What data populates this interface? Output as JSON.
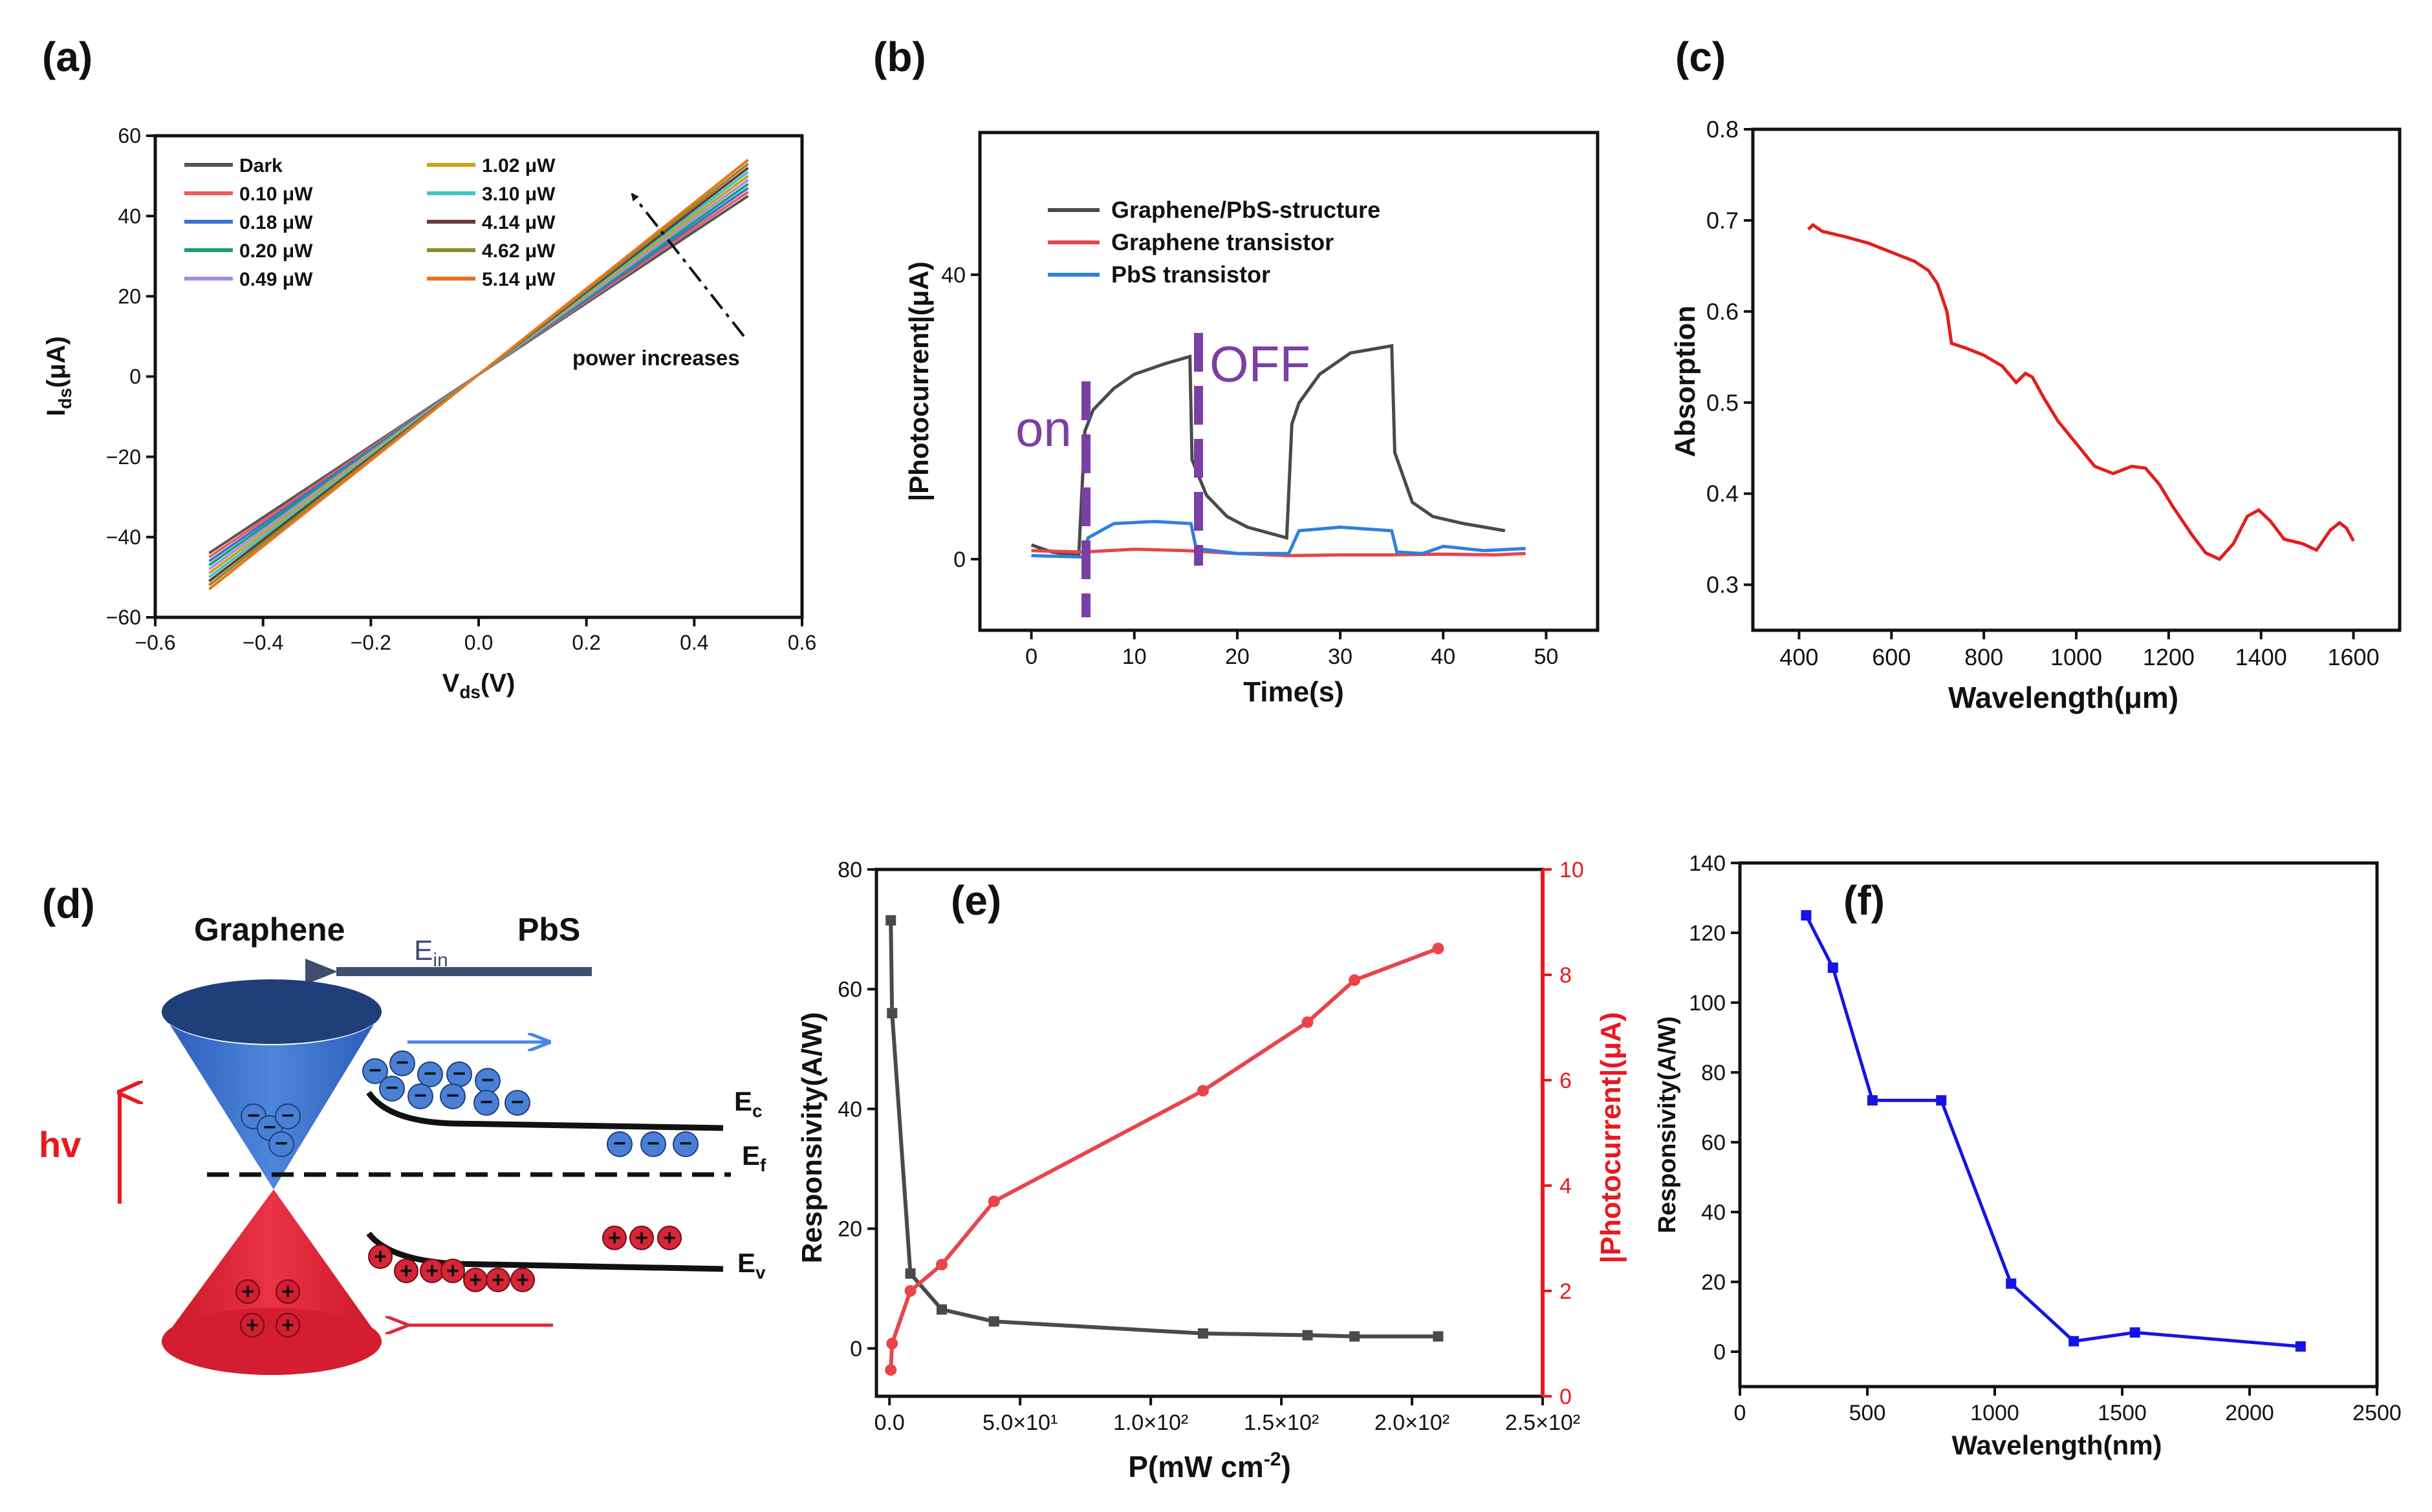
{
  "colors": {
    "dark": "#4a4a4a",
    "red": "#e8454a",
    "blue": "#2f7fe0",
    "purple": "#7b3fa6",
    "blue_line": "#1414e6",
    "red_line": "#e03b3b",
    "absorb": "#e0201b",
    "graphene_blue": "#3f6fc4",
    "pbs_red": "#e02a3a",
    "arrow_grey": "#3f4d6e"
  },
  "panels": {
    "a": {
      "label": "(a)"
    },
    "b": {
      "label": "(b)"
    },
    "c": {
      "label": "(c)"
    },
    "d": {
      "label": "(d)"
    },
    "e": {
      "label": "(e)"
    },
    "f": {
      "label": "(f)"
    }
  },
  "chart_data": [
    {
      "id": "a",
      "type": "line",
      "xlabel": "V",
      "xlabel_sub": "ds",
      "xlabel_tail": "(V)",
      "ylabel": "I",
      "ylabel_sub": "ds",
      "ylabel_tail": "(μA)",
      "xlim": [
        -0.6,
        0.6
      ],
      "ylim": [
        -60,
        60
      ],
      "xticks": [
        -0.6,
        -0.4,
        -0.2,
        0.0,
        0.2,
        0.4,
        0.6
      ],
      "xtick_labels": [
        "−0.6",
        "−0.4",
        "−0.2",
        "0.0",
        "0.2",
        "0.4",
        "0.6"
      ],
      "yticks": [
        -60,
        -40,
        -20,
        0,
        20,
        40,
        60
      ],
      "ytick_labels": [
        "−60",
        "−40",
        "−20",
        "0",
        "20",
        "40",
        "60"
      ],
      "x_range": [
        -0.5,
        0.5
      ],
      "series": [
        {
          "name": "Dark",
          "color": "#555555",
          "ymin": -44,
          "ymax": 45
        },
        {
          "name": "0.10 μW",
          "color": "#ee5a5a",
          "ymin": -45,
          "ymax": 46
        },
        {
          "name": "0.18 μW",
          "color": "#3a73d6",
          "ymin": -46,
          "ymax": 47
        },
        {
          "name": "0.20 μW",
          "color": "#1f9c74",
          "ymin": -47,
          "ymax": 48
        },
        {
          "name": "0.49 μW",
          "color": "#a98ee0",
          "ymin": -48,
          "ymax": 49
        },
        {
          "name": "1.02 μW",
          "color": "#c9a21f",
          "ymin": -49,
          "ymax": 50
        },
        {
          "name": "3.10 μW",
          "color": "#3ec6c6",
          "ymin": -50,
          "ymax": 51
        },
        {
          "name": "4.14 μW",
          "color": "#6b3a3a",
          "ymin": -51,
          "ymax": 52
        },
        {
          "name": "4.62 μW",
          "color": "#8b8b2a",
          "ymin": -52,
          "ymax": 53
        },
        {
          "name": "5.14 μW",
          "color": "#e8741f",
          "ymin": -53,
          "ymax": 54
        }
      ],
      "annotation": "power increases"
    },
    {
      "id": "b",
      "type": "line",
      "xlabel": "Time(s)",
      "ylabel": "|Photocurrent|(μA)",
      "xlim": [
        -5,
        55
      ],
      "ylim": [
        -10,
        60
      ],
      "xticks": [
        0,
        10,
        20,
        30,
        40,
        50
      ],
      "yticks": [
        0,
        40
      ],
      "series": [
        {
          "name": "Graphene/PbS-structure",
          "color": "#4a4a4a",
          "points": [
            [
              0,
              2
            ],
            [
              2,
              1
            ],
            [
              4.6,
              0.5
            ],
            [
              5.2,
              18
            ],
            [
              6,
              21
            ],
            [
              8,
              24
            ],
            [
              10,
              26
            ],
            [
              13,
              27.5
            ],
            [
              15.4,
              28.5
            ],
            [
              15.6,
              14
            ],
            [
              17,
              9
            ],
            [
              19,
              6
            ],
            [
              21,
              4.5
            ],
            [
              24.8,
              3
            ],
            [
              25.3,
              19
            ],
            [
              26,
              22
            ],
            [
              28,
              26
            ],
            [
              31,
              29
            ],
            [
              35,
              30
            ],
            [
              35.3,
              15
            ],
            [
              37,
              8
            ],
            [
              39,
              6
            ],
            [
              42,
              5
            ],
            [
              46,
              4
            ]
          ]
        },
        {
          "name": "Graphene transistor",
          "color": "#e8454a",
          "points": [
            [
              0,
              1.2
            ],
            [
              5,
              1
            ],
            [
              10,
              1.4
            ],
            [
              15,
              1.2
            ],
            [
              20,
              0.8
            ],
            [
              25,
              0.5
            ],
            [
              30,
              0.6
            ],
            [
              35,
              0.6
            ],
            [
              40,
              0.7
            ],
            [
              45,
              0.6
            ],
            [
              48,
              0.8
            ]
          ]
        },
        {
          "name": "PbS transistor",
          "color": "#2f7fe0",
          "points": [
            [
              0,
              0.5
            ],
            [
              5,
              0.3
            ],
            [
              5.5,
              3
            ],
            [
              8,
              5
            ],
            [
              12,
              5.3
            ],
            [
              15.5,
              5
            ],
            [
              16,
              1.5
            ],
            [
              20,
              0.8
            ],
            [
              25,
              0.8
            ],
            [
              26,
              4
            ],
            [
              30,
              4.5
            ],
            [
              35,
              4
            ],
            [
              35.5,
              1
            ],
            [
              38,
              0.8
            ],
            [
              40,
              1.8
            ],
            [
              44,
              1.2
            ],
            [
              48,
              1.5
            ]
          ]
        }
      ],
      "annotations": [
        "on",
        "OFF"
      ]
    },
    {
      "id": "c",
      "type": "line",
      "xlabel": "Wavelength(μm)",
      "ylabel": "Absorption",
      "xlim": [
        300,
        1700
      ],
      "ylim": [
        0.25,
        0.8
      ],
      "xticks": [
        400,
        600,
        800,
        1000,
        1200,
        1400,
        1600
      ],
      "yticks": [
        0.3,
        0.4,
        0.5,
        0.6,
        0.7,
        0.8
      ],
      "ytick_labels": [
        "0.3",
        "0.4",
        "0.5",
        "0.6",
        "0.7",
        "0.8"
      ],
      "series": [
        {
          "name": "Absorption",
          "color": "#e0201b",
          "points": [
            [
              420,
              0.69
            ],
            [
              430,
              0.695
            ],
            [
              450,
              0.688
            ],
            [
              500,
              0.682
            ],
            [
              550,
              0.675
            ],
            [
              600,
              0.665
            ],
            [
              650,
              0.655
            ],
            [
              680,
              0.645
            ],
            [
              700,
              0.63
            ],
            [
              720,
              0.6
            ],
            [
              730,
              0.565
            ],
            [
              760,
              0.56
            ],
            [
              800,
              0.552
            ],
            [
              840,
              0.54
            ],
            [
              870,
              0.522
            ],
            [
              890,
              0.532
            ],
            [
              905,
              0.528
            ],
            [
              930,
              0.505
            ],
            [
              960,
              0.48
            ],
            [
              1000,
              0.455
            ],
            [
              1040,
              0.43
            ],
            [
              1080,
              0.422
            ],
            [
              1120,
              0.43
            ],
            [
              1150,
              0.428
            ],
            [
              1180,
              0.41
            ],
            [
              1210,
              0.385
            ],
            [
              1250,
              0.355
            ],
            [
              1280,
              0.335
            ],
            [
              1310,
              0.328
            ],
            [
              1340,
              0.345
            ],
            [
              1370,
              0.375
            ],
            [
              1395,
              0.382
            ],
            [
              1420,
              0.37
            ],
            [
              1450,
              0.35
            ],
            [
              1490,
              0.345
            ],
            [
              1520,
              0.338
            ],
            [
              1550,
              0.36
            ],
            [
              1570,
              0.368
            ],
            [
              1585,
              0.362
            ],
            [
              1600,
              0.348
            ]
          ]
        }
      ]
    },
    {
      "id": "e",
      "type": "line",
      "xlabel": "P(mW cm",
      "xlabel_sup": "-2",
      "xlabel_tail": ")",
      "ylabel": "Responsivity(A/W)",
      "y2label": "|Photocurrent|(μA)",
      "xlim": [
        -5,
        250
      ],
      "ylim": [
        -8,
        80
      ],
      "y2lim": [
        0,
        10
      ],
      "xticks": [
        0,
        50,
        100,
        150,
        200,
        250
      ],
      "xtick_labels": [
        "0.0",
        "5.0×10¹",
        "1.0×10²",
        "1.5×10²",
        "2.0×10²",
        "2.5×10²"
      ],
      "yticks": [
        0,
        20,
        40,
        60,
        80
      ],
      "y2ticks": [
        0,
        2,
        4,
        6,
        8,
        10
      ],
      "series": [
        {
          "name": "Responsivity",
          "axis": "left",
          "color": "#4a4a4a",
          "points": [
            [
              0.5,
              71.5
            ],
            [
              1,
              56
            ],
            [
              8,
              12.5
            ],
            [
              20,
              6.5
            ],
            [
              40,
              4.5
            ],
            [
              120,
              2.5
            ],
            [
              160,
              2.2
            ],
            [
              178,
              2
            ],
            [
              210,
              2
            ]
          ]
        },
        {
          "name": "|Photocurrent|",
          "axis": "right",
          "color": "#e8454a",
          "points": [
            [
              0.5,
              0.5
            ],
            [
              1,
              1
            ],
            [
              8,
              2
            ],
            [
              20,
              2.5
            ],
            [
              40,
              3.7
            ],
            [
              120,
              5.8
            ],
            [
              160,
              7.1
            ],
            [
              178,
              7.9
            ],
            [
              210,
              8.5
            ]
          ]
        }
      ]
    },
    {
      "id": "f",
      "type": "line",
      "xlabel": "Wavelength(nm)",
      "ylabel": "Responsivity(A/W)",
      "xlim": [
        0,
        2500
      ],
      "ylim": [
        -10,
        140
      ],
      "xticks": [
        0,
        500,
        1000,
        1500,
        2000,
        2500
      ],
      "yticks": [
        0,
        20,
        40,
        60,
        80,
        100,
        120,
        140
      ],
      "series": [
        {
          "name": "Responsivity",
          "color": "#1414e6",
          "points": [
            [
              260,
              125
            ],
            [
              365,
              110
            ],
            [
              520,
              72
            ],
            [
              790,
              72
            ],
            [
              1064,
              19.5
            ],
            [
              1310,
              3
            ],
            [
              1550,
              5.5
            ],
            [
              2200,
              1.5
            ]
          ]
        }
      ]
    }
  ],
  "diagram": {
    "graphene_label": "Graphene",
    "pbs_label": "PbS",
    "ein": "E",
    "ein_sub": "in",
    "ec": "E",
    "ec_sub": "c",
    "ef": "E",
    "ef_sub": "f",
    "ev": "E",
    "ev_sub": "v",
    "hv": "hv",
    "electron_sign": "−",
    "hole_sign": "+"
  }
}
